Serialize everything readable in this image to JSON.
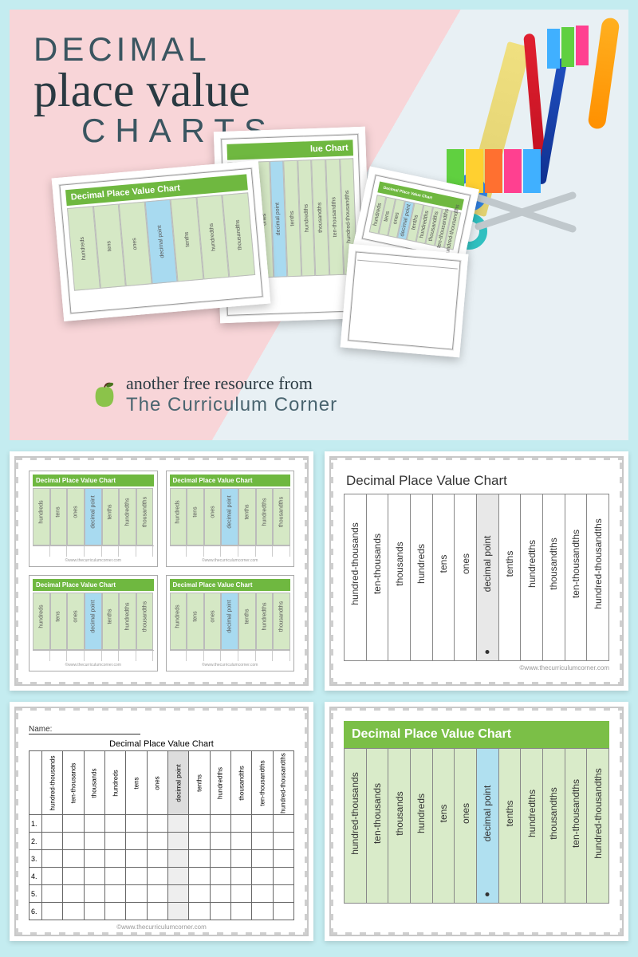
{
  "hero": {
    "title_line1": "DECIMAL",
    "title_line2": "place value",
    "title_line3": "CHARTS",
    "tagline": "another free resource from",
    "brand": "The Curriculum Corner",
    "mini_title": "Decimal Place Value Chart",
    "mini_short_cols": [
      "hundreds",
      "tens",
      "ones",
      "decimal point",
      "tenths",
      "hundredths",
      "thousandths"
    ],
    "mini_long_title": "lue Chart",
    "colors": {
      "bg_left": "#f8d5d8",
      "bg_right": "#e8f0f4",
      "header_green": "#6fb840",
      "col_green": "#d5e8c5",
      "col_blue": "#a8daf0",
      "text_slate": "#3a5560"
    },
    "supply_colors": {
      "sticky_notes": [
        "#60d040",
        "#ffd030",
        "#ff7030",
        "#ff4090",
        "#40b0ff"
      ],
      "highlighter": "#ffb020",
      "pen_red": "#e02030",
      "pen_blue": "#2050c0",
      "ruler": "#e0d070",
      "scissors_blue": "#3080e0",
      "scissors_teal": "#30c0c0"
    }
  },
  "cards": {
    "small_chart": {
      "title": "Decimal Place Value Chart",
      "columns": [
        "hundreds",
        "tens",
        "ones",
        "decimal point",
        "tenths",
        "hundredths",
        "thousandths"
      ],
      "footer": "©www.thecurriculumcorner.com",
      "header_color": "#6fb840",
      "col_color": "#d5e8c5",
      "dp_color": "#a8daf0"
    },
    "large_chart": {
      "title": "Decimal Place Value Chart",
      "columns": [
        "hundred-thousands",
        "ten-thousands",
        "thousands",
        "hundreds",
        "tens",
        "ones",
        "decimal point",
        "tenths",
        "hundredths",
        "thousandths",
        "ten-thousandths",
        "hundred-thousandths"
      ],
      "dp_index": 6,
      "footer": "©www.thecurriculumcorner.com"
    },
    "worksheet": {
      "name_label": "Name:",
      "title": "Decimal Place Value Chart",
      "columns": [
        "hundred-thousands",
        "ten-thousands",
        "thousands",
        "hundreds",
        "tens",
        "ones",
        "decimal point",
        "tenths",
        "hundredths",
        "thousandths",
        "ten-thousandths",
        "hundred-thousandths"
      ],
      "dp_index": 6,
      "rows": [
        "1.",
        "2.",
        "3.",
        "4.",
        "5.",
        "6."
      ],
      "footer": "©www.thecurriculumcorner.com"
    },
    "green_chart": {
      "title": "Decimal Place Value Chart",
      "columns": [
        "hundred-thousands",
        "ten-thousands",
        "thousands",
        "hundreds",
        "tens",
        "ones",
        "decimal point",
        "tenths",
        "hundredths",
        "thousandths",
        "ten-thousandths",
        "hundred-thousandths"
      ],
      "dp_index": 6,
      "header_color": "#7bbf47",
      "col_color": "#d9ebc9",
      "dp_color": "#b0e0f0"
    }
  },
  "page_background": "#c4ecf0"
}
